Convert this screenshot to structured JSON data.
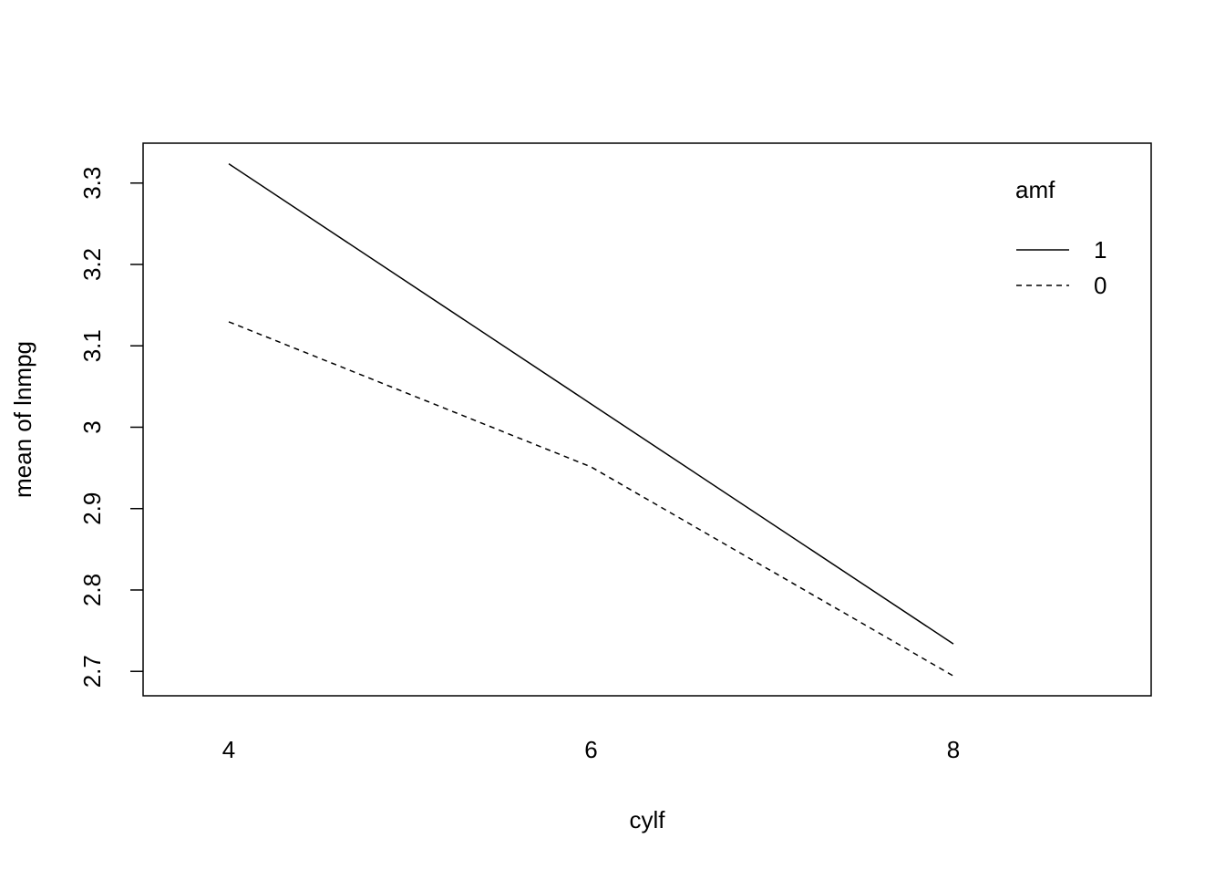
{
  "chart_data": {
    "type": "line",
    "x_label": "cylf",
    "y_label": "mean of  lnmpg",
    "categories": [
      "4",
      "6",
      "8"
    ],
    "series": [
      {
        "name": "1",
        "color": "#000000",
        "dash": "none",
        "values": [
          3.3236,
          3.0286,
          2.7337
        ]
      },
      {
        "name": "0",
        "color": "#000000",
        "dash": "6,5",
        "values": [
          3.1295,
          2.9512,
          2.6944
        ]
      }
    ],
    "legend_title": "amf",
    "legend_position": "top-right",
    "ylim": [
      2.67,
      3.349
    ],
    "yticks": [
      2.7,
      2.8,
      2.9,
      3.0,
      3.1,
      3.2,
      3.3
    ]
  }
}
